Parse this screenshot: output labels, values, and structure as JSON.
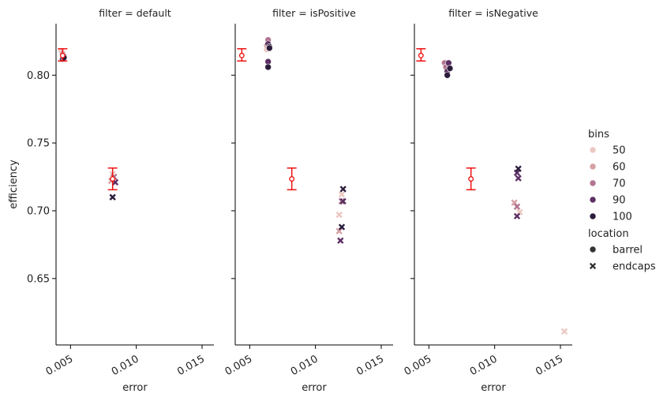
{
  "chart_data": {
    "type": "scatter",
    "xlabel": "error",
    "ylabel": "efficiency",
    "xlim": [
      0.0039,
      0.0159
    ],
    "ylim": [
      0.601,
      0.838
    ],
    "xticks": [
      0.005,
      0.01,
      0.015
    ],
    "xtick_labels": [
      "0.005",
      "0.010",
      "0.015"
    ],
    "yticks": [
      0.65,
      0.7,
      0.75,
      0.8
    ],
    "ytick_labels": [
      "0.65",
      "0.70",
      "0.75",
      "0.80"
    ],
    "grid": false,
    "legend_position": "right",
    "legend": {
      "hue_title": "bins",
      "hue_entries": [
        {
          "label": "50",
          "color": "#ecc8c2"
        },
        {
          "label": "60",
          "color": "#d6a0a4"
        },
        {
          "label": "70",
          "color": "#b27592"
        },
        {
          "label": "90",
          "color": "#5c3064"
        },
        {
          "label": "100",
          "color": "#2b1c3c"
        }
      ],
      "style_title": "location",
      "style_entries": [
        {
          "label": "barrel",
          "marker": "circle"
        },
        {
          "label": "endcaps",
          "marker": "x"
        }
      ]
    },
    "errorbar_color": "#ee1111",
    "reference_errorbars": [
      {
        "x": 0.0044,
        "y": 0.8145,
        "ylow": 0.8105,
        "yhigh": 0.8195
      },
      {
        "x": 0.0082,
        "y": 0.7235,
        "ylow": 0.7155,
        "yhigh": 0.7315
      }
    ],
    "panels": [
      {
        "title": "filter = default",
        "points": [
          {
            "x": 0.0043,
            "y": 0.818,
            "bins": "50",
            "location": "barrel"
          },
          {
            "x": 0.0044,
            "y": 0.816,
            "bins": "60",
            "location": "barrel"
          },
          {
            "x": 0.0045,
            "y": 0.814,
            "bins": "70",
            "location": "barrel"
          },
          {
            "x": 0.0044,
            "y": 0.812,
            "bins": "90",
            "location": "barrel"
          },
          {
            "x": 0.0045,
            "y": 0.813,
            "bins": "100",
            "location": "barrel"
          },
          {
            "x": 0.0082,
            "y": 0.727,
            "bins": "50",
            "location": "endcaps"
          },
          {
            "x": 0.0081,
            "y": 0.722,
            "bins": "60",
            "location": "endcaps"
          },
          {
            "x": 0.0083,
            "y": 0.725,
            "bins": "70",
            "location": "endcaps"
          },
          {
            "x": 0.0084,
            "y": 0.721,
            "bins": "90",
            "location": "endcaps"
          },
          {
            "x": 0.0082,
            "y": 0.71,
            "bins": "100",
            "location": "endcaps"
          }
        ]
      },
      {
        "title": "filter = isPositive",
        "points": [
          {
            "x": 0.0063,
            "y": 0.819,
            "bins": "50",
            "location": "barrel"
          },
          {
            "x": 0.0063,
            "y": 0.822,
            "bins": "60",
            "location": "barrel"
          },
          {
            "x": 0.0064,
            "y": 0.826,
            "bins": "70",
            "location": "barrel"
          },
          {
            "x": 0.0064,
            "y": 0.823,
            "bins": "90",
            "location": "barrel"
          },
          {
            "x": 0.0064,
            "y": 0.81,
            "bins": "90",
            "location": "barrel"
          },
          {
            "x": 0.0065,
            "y": 0.821,
            "bins": "100",
            "location": "barrel"
          },
          {
            "x": 0.0065,
            "y": 0.82,
            "bins": "100",
            "location": "barrel"
          },
          {
            "x": 0.0064,
            "y": 0.806,
            "bins": "100",
            "location": "barrel"
          },
          {
            "x": 0.0118,
            "y": 0.697,
            "bins": "50",
            "location": "endcaps"
          },
          {
            "x": 0.012,
            "y": 0.712,
            "bins": "50",
            "location": "endcaps"
          },
          {
            "x": 0.0118,
            "y": 0.685,
            "bins": "60",
            "location": "endcaps"
          },
          {
            "x": 0.012,
            "y": 0.707,
            "bins": "70",
            "location": "endcaps"
          },
          {
            "x": 0.0119,
            "y": 0.678,
            "bins": "90",
            "location": "endcaps"
          },
          {
            "x": 0.0121,
            "y": 0.707,
            "bins": "90",
            "location": "endcaps"
          },
          {
            "x": 0.0121,
            "y": 0.716,
            "bins": "100",
            "location": "endcaps"
          },
          {
            "x": 0.012,
            "y": 0.688,
            "bins": "100",
            "location": "endcaps"
          }
        ]
      },
      {
        "title": "filter = isNegative",
        "points": [
          {
            "x": 0.0062,
            "y": 0.809,
            "bins": "70",
            "location": "barrel"
          },
          {
            "x": 0.0063,
            "y": 0.806,
            "bins": "70",
            "location": "barrel"
          },
          {
            "x": 0.0064,
            "y": 0.803,
            "bins": "90",
            "location": "barrel"
          },
          {
            "x": 0.0065,
            "y": 0.809,
            "bins": "90",
            "location": "barrel"
          },
          {
            "x": 0.0066,
            "y": 0.805,
            "bins": "100",
            "location": "barrel"
          },
          {
            "x": 0.0064,
            "y": 0.8,
            "bins": "100",
            "location": "barrel"
          },
          {
            "x": 0.0153,
            "y": 0.611,
            "bins": "50",
            "location": "endcaps"
          },
          {
            "x": 0.0119,
            "y": 0.699,
            "bins": "50",
            "location": "endcaps"
          },
          {
            "x": 0.0115,
            "y": 0.706,
            "bins": "60",
            "location": "endcaps"
          },
          {
            "x": 0.0117,
            "y": 0.703,
            "bins": "70",
            "location": "endcaps"
          },
          {
            "x": 0.0117,
            "y": 0.696,
            "bins": "90",
            "location": "endcaps"
          },
          {
            "x": 0.0118,
            "y": 0.724,
            "bins": "90",
            "location": "endcaps"
          },
          {
            "x": 0.0117,
            "y": 0.728,
            "bins": "90",
            "location": "endcaps"
          },
          {
            "x": 0.0118,
            "y": 0.731,
            "bins": "100",
            "location": "endcaps"
          }
        ]
      }
    ]
  }
}
